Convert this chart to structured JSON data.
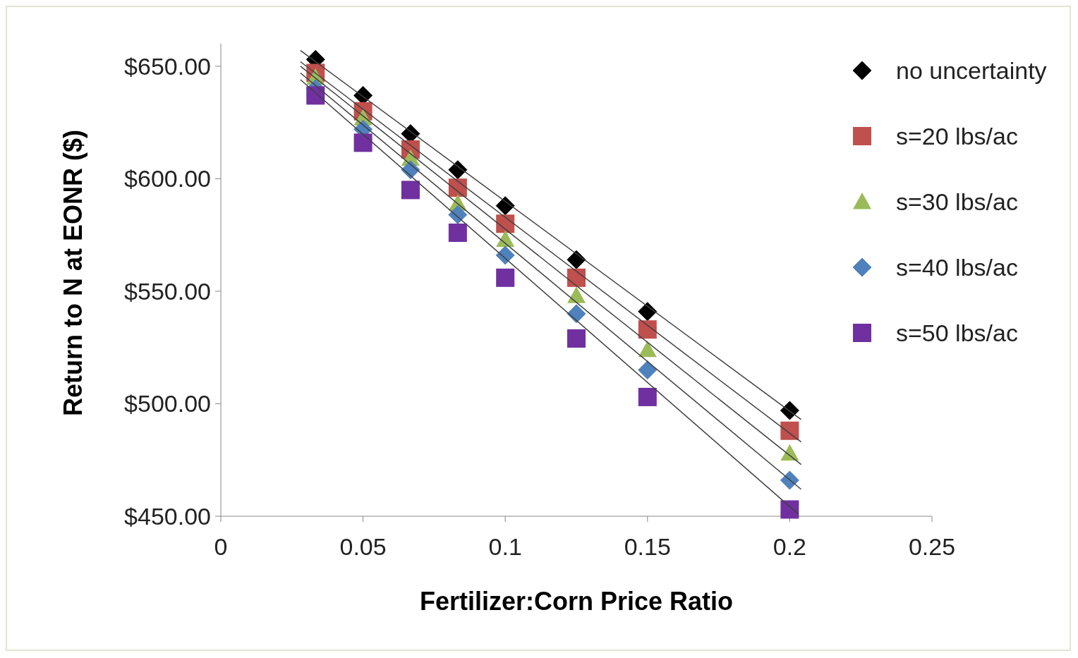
{
  "chart_data": {
    "type": "scatter",
    "xlabel": "Fertilizer:Corn Price Ratio",
    "ylabel": "Return to N at EONR ($)",
    "xlim": [
      0,
      0.25
    ],
    "xticks": [
      0,
      0.05,
      0.1,
      0.15,
      0.2,
      0.25
    ],
    "ylim": [
      450,
      660
    ],
    "yticks": [
      {
        "value": 450,
        "label": "$450.00"
      },
      {
        "value": 500,
        "label": "$500.00"
      },
      {
        "value": 550,
        "label": "$550.00"
      },
      {
        "value": 600,
        "label": "$600.00"
      },
      {
        "value": 650,
        "label": "$650.00"
      }
    ],
    "x": [
      0.0333,
      0.05,
      0.0667,
      0.0833,
      0.1,
      0.125,
      0.15,
      0.2
    ],
    "legend": "right",
    "grid": false,
    "series": [
      {
        "name": "no uncertainty",
        "color": "#000000",
        "marker": "diamond",
        "values": [
          653,
          637,
          620,
          604,
          588,
          564,
          541,
          497
        ]
      },
      {
        "name": "s=20 lbs/ac",
        "color": "#c0504d",
        "marker": "square",
        "values": [
          647,
          630,
          613,
          596,
          580,
          556,
          533,
          488
        ]
      },
      {
        "name": "s=30 lbs/ac",
        "color": "#9bbb59",
        "marker": "triangle",
        "values": [
          645,
          627,
          609,
          589,
          573,
          548,
          524,
          478
        ]
      },
      {
        "name": "s=40 lbs/ac",
        "color": "#4f81bd",
        "marker": "diamond",
        "values": [
          640,
          622,
          604,
          584,
          566,
          540,
          515,
          466
        ]
      },
      {
        "name": "s=50 lbs/ac",
        "color": "#7030a0",
        "marker": "square",
        "values": [
          637,
          616,
          595,
          576,
          556,
          529,
          503,
          453
        ]
      },
      {
        "type": "line",
        "color": "#404040",
        "marker": "none",
        "x": [
          0.028,
          0.204
        ],
        "values": [
          657,
          493
        ]
      },
      {
        "type": "line",
        "color": "#404040",
        "marker": "none",
        "x": [
          0.028,
          0.204
        ],
        "values": [
          652,
          483
        ]
      },
      {
        "type": "line",
        "color": "#404040",
        "marker": "none",
        "x": [
          0.028,
          0.204
        ],
        "values": [
          650,
          473
        ]
      },
      {
        "type": "line",
        "color": "#404040",
        "marker": "none",
        "x": [
          0.028,
          0.204
        ],
        "values": [
          647,
          462
        ]
      },
      {
        "type": "line",
        "color": "#404040",
        "marker": "none",
        "x": [
          0.028,
          0.203
        ],
        "values": [
          644,
          451
        ]
      }
    ]
  }
}
